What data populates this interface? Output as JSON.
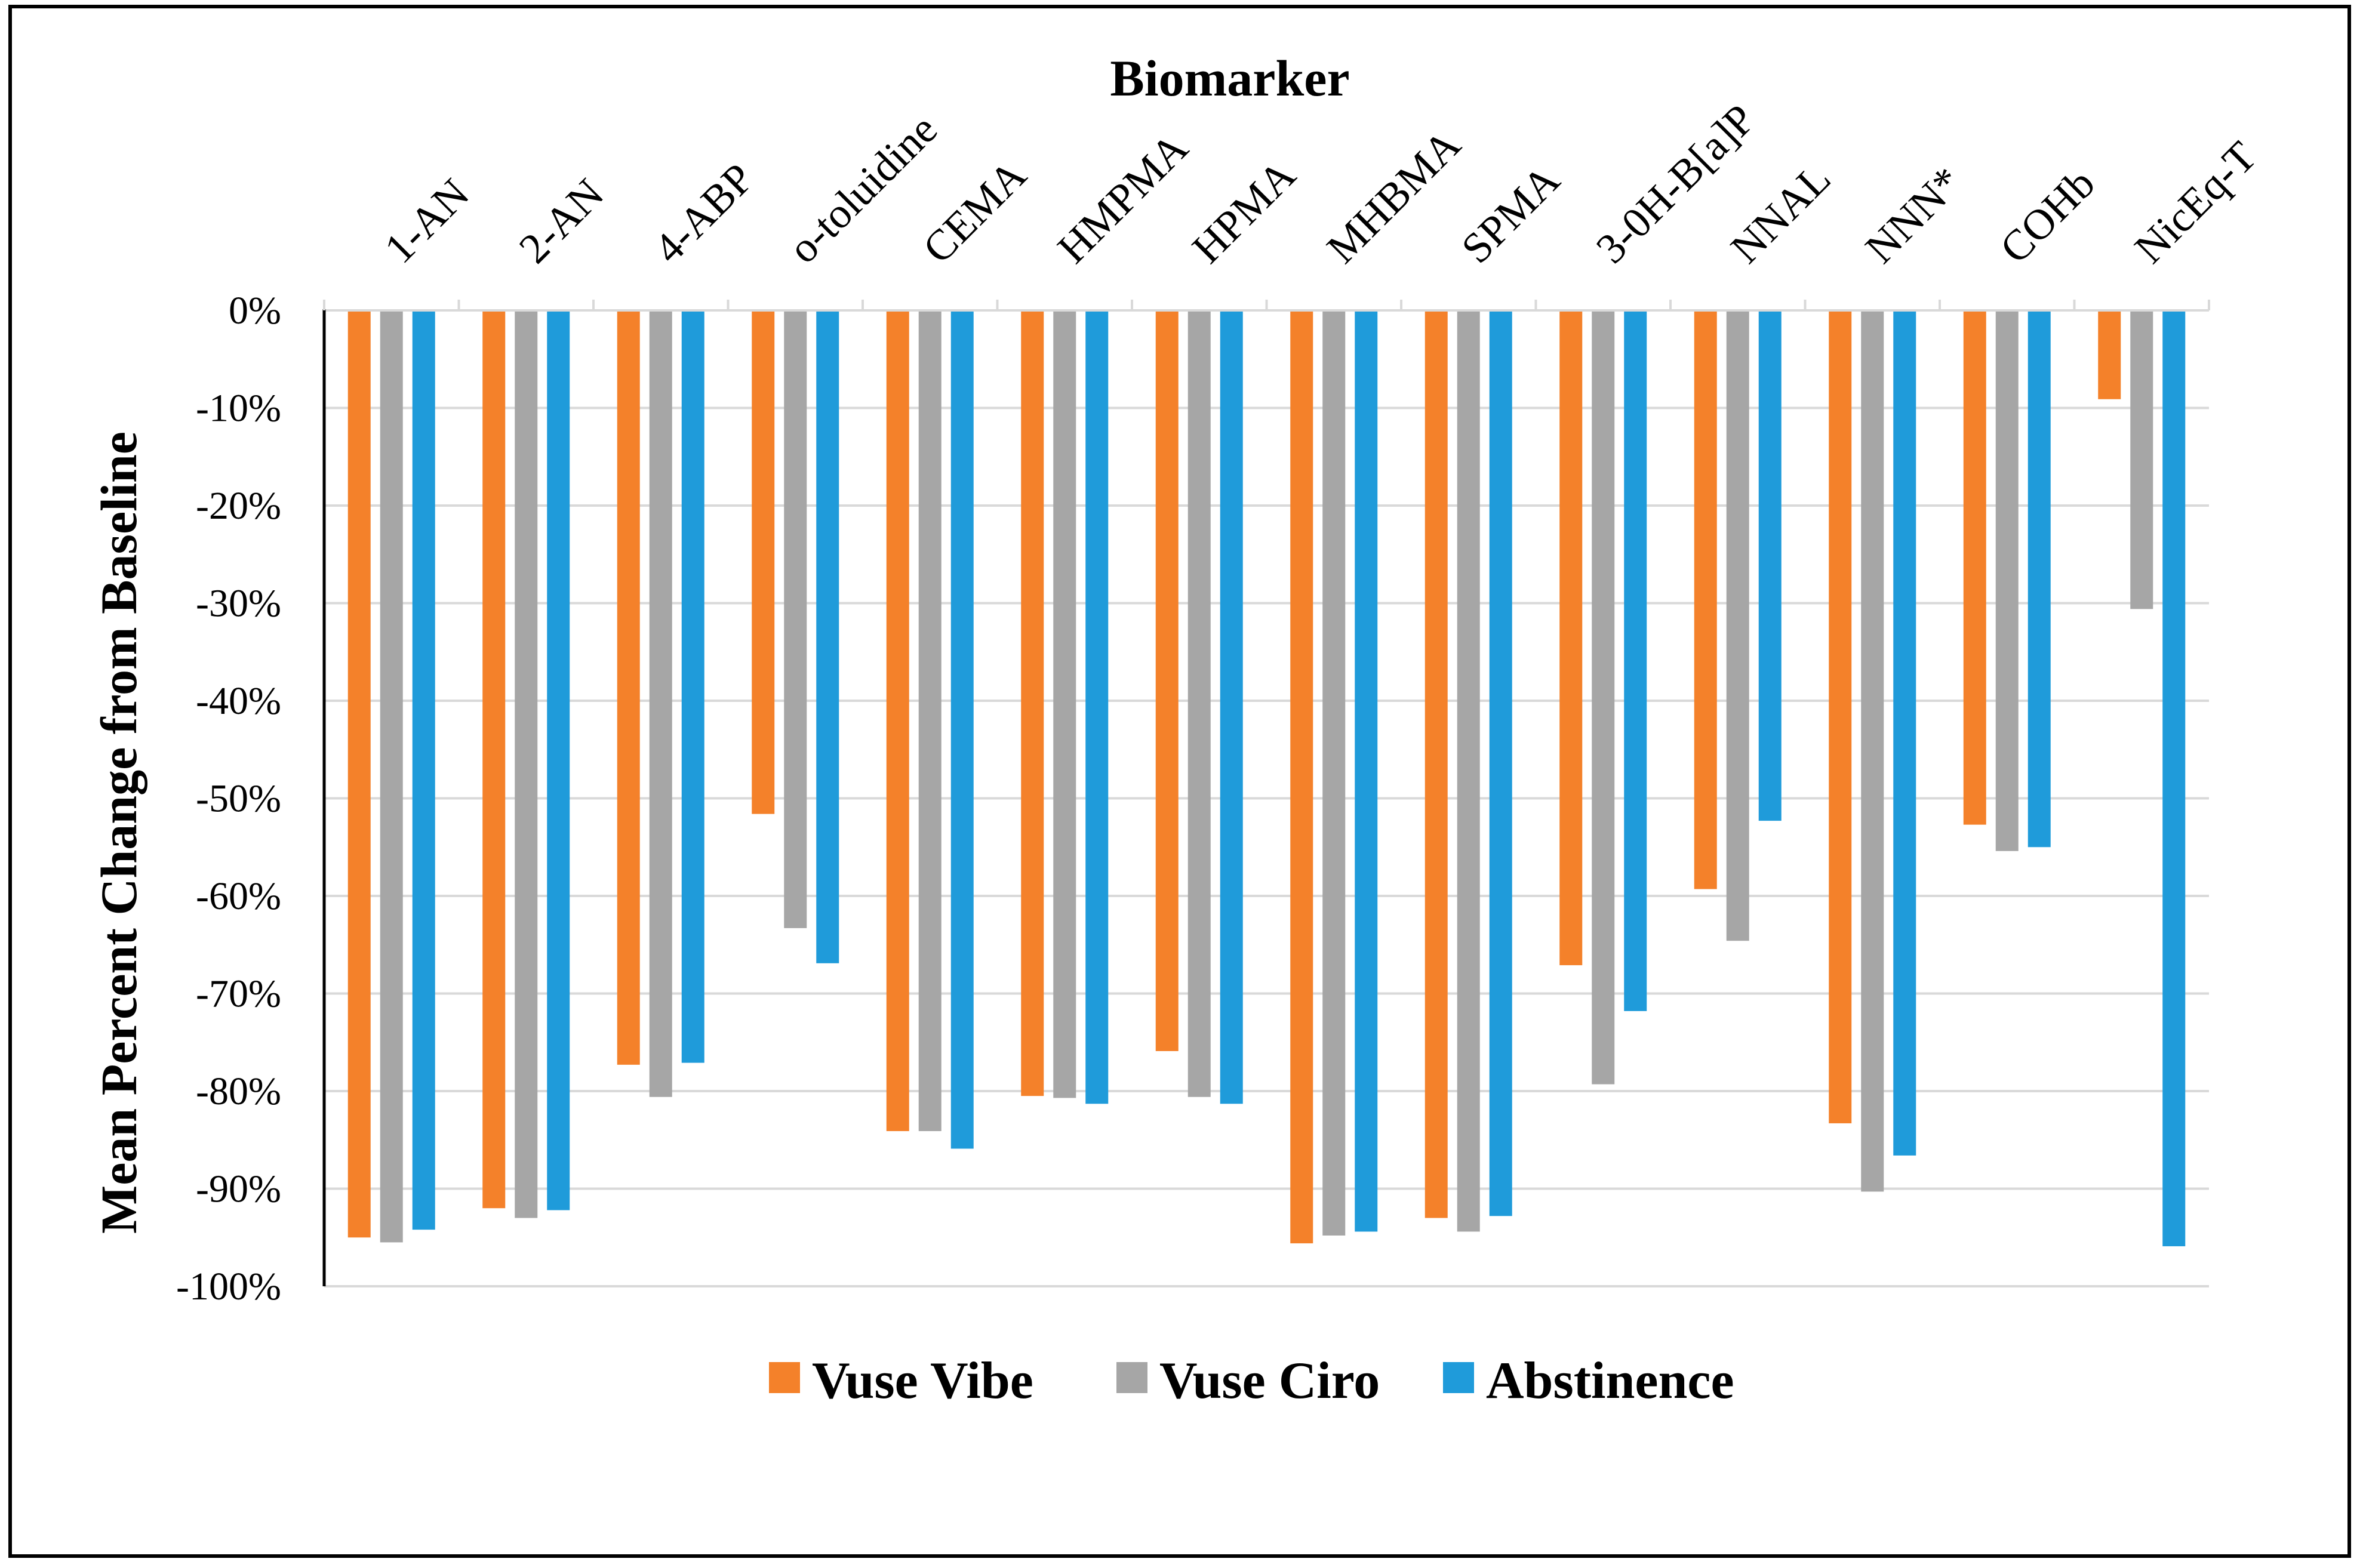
{
  "chart_data": {
    "type": "bar",
    "title": "",
    "xlabel": "Biomarker",
    "ylabel": "Mean Percent Change from Baseline",
    "ylim": [
      -100,
      0
    ],
    "yticks": [
      "0%",
      "-10%",
      "-20%",
      "-30%",
      "-40%",
      "-50%",
      "-60%",
      "-70%",
      "-80%",
      "-90%",
      "-100%"
    ],
    "ytick_values": [
      0,
      -10,
      -20,
      -30,
      -40,
      -50,
      -60,
      -70,
      -80,
      -90,
      -100
    ],
    "grid": true,
    "legend_position": "bottom",
    "categories": [
      "1-AN",
      "2-AN",
      "4-ABP",
      "o-toluidine",
      "CEMA",
      "HMPMA",
      "HPMA",
      "MHBMA",
      "SPMA",
      "3-0H-B[a]P",
      "NNAL",
      "NNN*",
      "COHb",
      "NicEq-T"
    ],
    "series": [
      {
        "name": "Vuse Vibe",
        "color": "#F4812A",
        "values": [
          -95.0,
          -92.0,
          -77.3,
          -51.6,
          -84.1,
          -80.5,
          -75.9,
          -95.6,
          -93.0,
          -67.1,
          -59.3,
          -83.3,
          -52.7,
          -9.1
        ]
      },
      {
        "name": "Vuse Ciro",
        "color": "#A6A6A6",
        "values": [
          -95.5,
          -93.0,
          -80.6,
          -63.3,
          -84.1,
          -80.7,
          -80.6,
          -94.8,
          -94.4,
          -79.3,
          -64.6,
          -90.3,
          -55.4,
          -30.6
        ]
      },
      {
        "name": "Abstinence",
        "color": "#1F9BDA",
        "values": [
          -94.2,
          -92.2,
          -77.1,
          -66.9,
          -85.9,
          -81.3,
          -81.3,
          -94.4,
          -92.8,
          -71.8,
          -52.3,
          -86.6,
          -55.0,
          -95.9
        ]
      }
    ]
  }
}
